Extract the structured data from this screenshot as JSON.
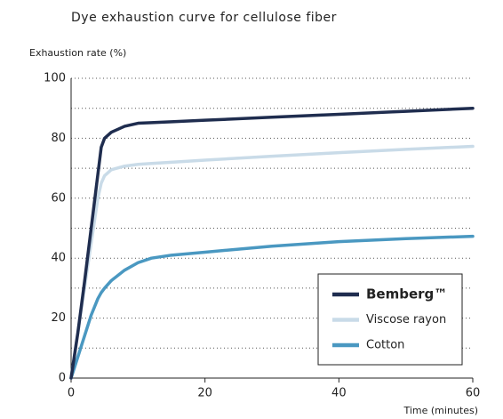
{
  "chart_data": {
    "type": "line",
    "title": "Dye exhaustion curve for cellulose fiber",
    "y_label": "Exhaustion rate (%)",
    "x_label": "Time (minutes)",
    "x": [
      0,
      1,
      2,
      3,
      4,
      4.5,
      5,
      6,
      8,
      10,
      12,
      15,
      20,
      30,
      40,
      50,
      60
    ],
    "series": [
      {
        "name": "Bemberg™",
        "color": "#1f2d4f",
        "values": [
          0,
          15,
          32,
          50,
          68,
          77,
          80,
          82,
          84,
          85,
          85.2,
          85.5,
          86,
          87,
          88,
          89,
          90
        ]
      },
      {
        "name": "Viscose rayon",
        "color": "#c9dbe8",
        "values": [
          0,
          15,
          30,
          45,
          60,
          65,
          67.5,
          69.5,
          70.7,
          71.3,
          71.6,
          72,
          72.7,
          74,
          75.2,
          76.3,
          77.3
        ]
      },
      {
        "name": "Cotton",
        "color": "#4a98c1",
        "values": [
          0,
          7,
          14,
          21,
          26.5,
          28.5,
          30,
          32.5,
          36,
          38.5,
          40,
          41,
          42,
          44,
          45.5,
          46.5,
          47.3
        ]
      }
    ],
    "xlim": [
      0,
      60
    ],
    "xticks": [
      0,
      20,
      40,
      60
    ],
    "ylim": [
      0,
      100
    ],
    "yticks": [
      0,
      20,
      40,
      60,
      80,
      100
    ],
    "y_minor_ticks": [
      10,
      30,
      50,
      70,
      90
    ],
    "grid": true,
    "legend": "lower right"
  }
}
